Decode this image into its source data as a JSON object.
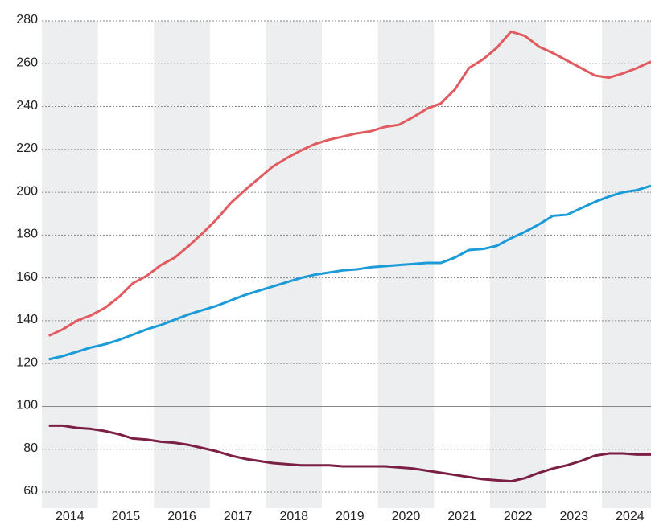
{
  "chart_data": {
    "type": "line",
    "x": [
      2014.125,
      2014.375,
      2014.625,
      2014.875,
      2015.125,
      2015.375,
      2015.625,
      2015.875,
      2016.125,
      2016.375,
      2016.625,
      2016.875,
      2017.125,
      2017.375,
      2017.625,
      2017.875,
      2018.125,
      2018.375,
      2018.625,
      2018.875,
      2019.125,
      2019.375,
      2019.625,
      2019.875,
      2020.125,
      2020.375,
      2020.625,
      2020.875,
      2021.125,
      2021.375,
      2021.625,
      2021.875,
      2022.125,
      2022.375,
      2022.625,
      2022.875,
      2023.125,
      2023.375,
      2023.625,
      2023.875,
      2024.125,
      2024.375,
      2024.625,
      2024.875
    ],
    "series": [
      {
        "color": "#e15b60",
        "values": [
          133,
          136,
          140,
          142.5,
          146,
          151,
          157.5,
          161,
          166,
          169.5,
          175,
          181,
          187.5,
          195,
          201,
          206.5,
          212,
          216,
          219.5,
          222.5,
          224.5,
          226,
          227.5,
          228.5,
          230.5,
          231.5,
          235,
          239,
          241.5,
          248,
          258,
          262,
          267.5,
          275,
          273,
          268,
          265,
          261.5,
          258,
          254.5,
          253.5,
          255.5,
          258,
          261
        ]
      },
      {
        "color": "#1b9bd7",
        "values": [
          122,
          123.5,
          125.5,
          127.5,
          129,
          131,
          133.5,
          136,
          138,
          140.5,
          143,
          145,
          147,
          149.5,
          152,
          154,
          156,
          158,
          160,
          161.5,
          162.5,
          163.5,
          164,
          165,
          165.5,
          166,
          166.5,
          167,
          167,
          169.5,
          173,
          173.5,
          175,
          178.5,
          181.5,
          185,
          189,
          189.5,
          192.5,
          195.5,
          198,
          200,
          201,
          203
        ]
      },
      {
        "color": "#7b1f45",
        "values": [
          91,
          91,
          90,
          89.5,
          88.5,
          87,
          85,
          84.5,
          83.5,
          83,
          82,
          80.5,
          79,
          77,
          75.5,
          74.5,
          73.5,
          73,
          72.5,
          72.5,
          72.5,
          72,
          72,
          72,
          72,
          71.5,
          71,
          70,
          69,
          68,
          67,
          66,
          65.5,
          65,
          66.5,
          69,
          71,
          72.5,
          74.5,
          77,
          78,
          78,
          77.5,
          77.5
        ]
      }
    ],
    "xlim": [
      2014,
      2024.875
    ],
    "xticks": [
      {
        "value": 2014.5,
        "label": "2014"
      },
      {
        "value": 2015.5,
        "label": "2015"
      },
      {
        "value": 2016.5,
        "label": "2016"
      },
      {
        "value": 2017.5,
        "label": "2017"
      },
      {
        "value": 2018.5,
        "label": "2018"
      },
      {
        "value": 2019.5,
        "label": "2019"
      },
      {
        "value": 2020.5,
        "label": "2020"
      },
      {
        "value": 2021.5,
        "label": "2021"
      },
      {
        "value": 2022.5,
        "label": "2022"
      },
      {
        "value": 2023.5,
        "label": "2023"
      },
      {
        "value": 2024.5,
        "label": "2024"
      }
    ],
    "ylim": [
      60,
      280
    ],
    "yticks": [
      60,
      80,
      100,
      120,
      140,
      160,
      180,
      200,
      220,
      240,
      260,
      280
    ],
    "grid": true,
    "hline": 100
  }
}
